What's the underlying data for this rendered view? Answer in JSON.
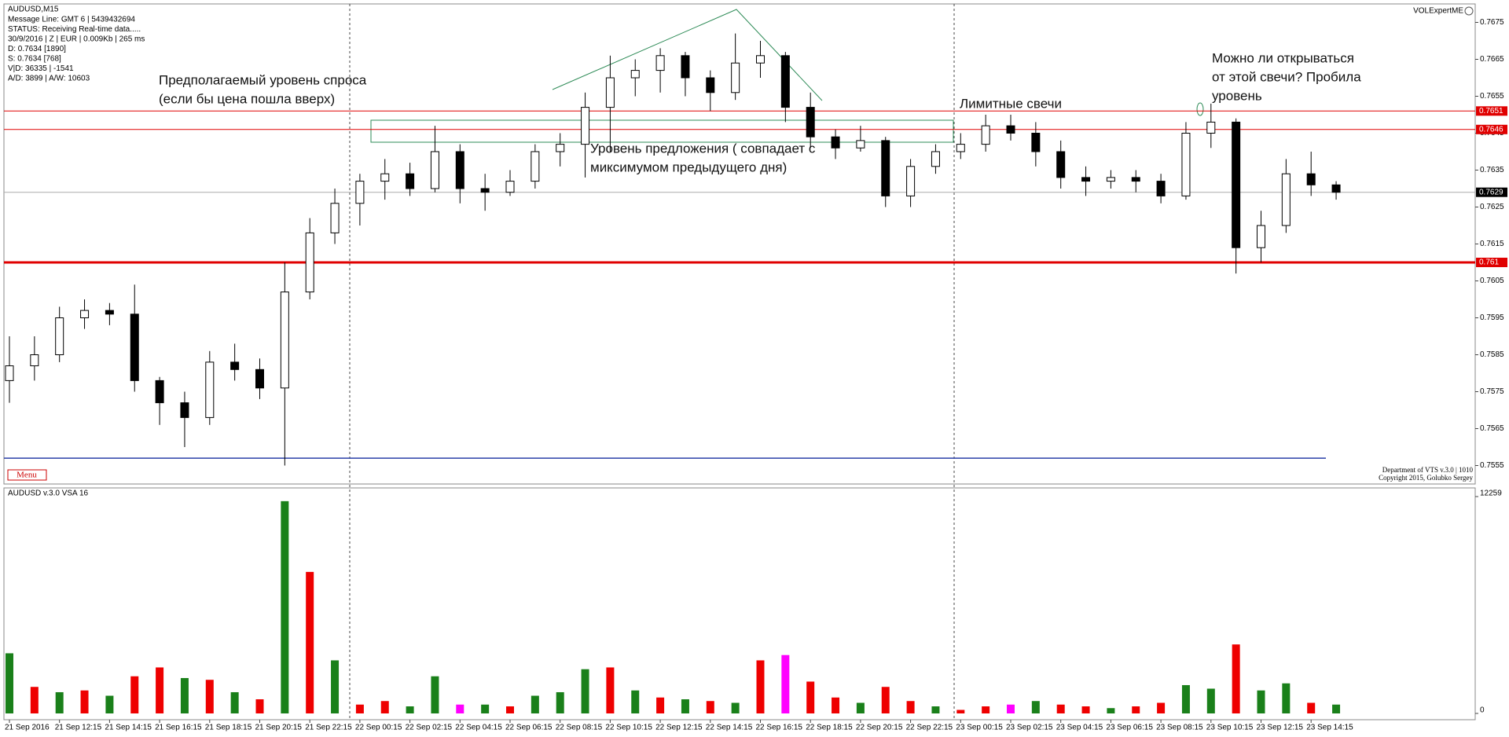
{
  "header": {
    "title": "AUDUSD,M15",
    "info_lines": [
      "Message Line: GMT 6 | 5439432694",
      "STATUS:  Receiving Real-time data.....",
      "30/9/2016 | Z | EUR | 0.009Kb | 265 ms",
      "D: 0.7634  [1890]",
      "S: 0.7634  [768]",
      "V|D: 36335 | -1541",
      "A/D: 3899 | A/W: 10603"
    ],
    "indicator_name": "VOLExpertME",
    "menu": "Menu",
    "credits": [
      "Department of VTS  v.3.0 | 1010",
      "Copyright 2015, Golubko Sergey"
    ]
  },
  "annotations": [
    {
      "lines": [
        "Предполагаемый уровень спроса",
        "(если бы цена пошла вверх)"
      ]
    },
    {
      "lines": [
        "Уровень предложения ( совпадает с",
        "миксимумом предыдущего дня)"
      ]
    },
    {
      "lines": [
        "Лимитные свечи"
      ]
    },
    {
      "lines": [
        "Можно ли открываться",
        "от этой свечи? Пробила",
        "уровень"
      ]
    }
  ],
  "chart_data": [
    {
      "type": "candlestick",
      "open": [
        0.7578,
        0.7582,
        0.7585,
        0.7595,
        0.7597,
        0.7596,
        0.7578,
        0.7572,
        0.7568,
        0.7583,
        0.7581,
        0.7576,
        0.7602,
        0.7618,
        0.7626,
        0.7632,
        0.7634,
        0.763,
        0.764,
        0.763,
        0.7629,
        0.7632,
        0.764,
        0.7642,
        0.7652,
        0.766,
        0.7662,
        0.7666,
        0.766,
        0.7656,
        0.7664,
        0.7666,
        0.7652,
        0.7644,
        0.7641,
        0.7643,
        0.7628,
        0.7636,
        0.764,
        0.7642,
        0.7647,
        0.7645,
        0.764,
        0.7633,
        0.7632,
        0.7633,
        0.7632,
        0.7628,
        0.7645,
        0.7648,
        0.7614,
        0.762,
        0.7634,
        0.7631
      ],
      "high": [
        0.759,
        0.759,
        0.7598,
        0.76,
        0.7599,
        0.7604,
        0.7579,
        0.7575,
        0.7586,
        0.7588,
        0.7584,
        0.761,
        0.7622,
        0.763,
        0.7634,
        0.7638,
        0.7637,
        0.7647,
        0.7642,
        0.7634,
        0.7635,
        0.7642,
        0.7645,
        0.7656,
        0.7666,
        0.7665,
        0.7668,
        0.7667,
        0.7662,
        0.7672,
        0.767,
        0.7667,
        0.7656,
        0.7646,
        0.7647,
        0.7644,
        0.7638,
        0.7642,
        0.7645,
        0.765,
        0.765,
        0.7648,
        0.7643,
        0.7636,
        0.7635,
        0.7635,
        0.7634,
        0.7648,
        0.7653,
        0.7649,
        0.7624,
        0.7638,
        0.764,
        0.7632
      ],
      "low": [
        0.7572,
        0.7578,
        0.7583,
        0.7592,
        0.7593,
        0.7575,
        0.7566,
        0.756,
        0.7566,
        0.7578,
        0.7573,
        0.7555,
        0.76,
        0.7615,
        0.762,
        0.7627,
        0.7628,
        0.7629,
        0.7626,
        0.7624,
        0.7628,
        0.763,
        0.7636,
        0.7633,
        0.764,
        0.7655,
        0.7656,
        0.7655,
        0.7651,
        0.7654,
        0.766,
        0.7648,
        0.7641,
        0.7638,
        0.764,
        0.7625,
        0.7625,
        0.7634,
        0.7638,
        0.764,
        0.7643,
        0.7636,
        0.763,
        0.7628,
        0.763,
        0.7629,
        0.7626,
        0.7627,
        0.7641,
        0.7607,
        0.761,
        0.7618,
        0.7628,
        0.7627
      ],
      "close": [
        0.7582,
        0.7585,
        0.7595,
        0.7597,
        0.7596,
        0.7578,
        0.7572,
        0.7568,
        0.7583,
        0.7581,
        0.7576,
        0.7602,
        0.7618,
        0.7626,
        0.7632,
        0.7634,
        0.763,
        0.764,
        0.763,
        0.7629,
        0.7632,
        0.764,
        0.7642,
        0.7652,
        0.766,
        0.7662,
        0.7666,
        0.766,
        0.7656,
        0.7664,
        0.7666,
        0.7652,
        0.7644,
        0.7641,
        0.7643,
        0.7628,
        0.7636,
        0.764,
        0.7642,
        0.7647,
        0.7645,
        0.764,
        0.7633,
        0.7632,
        0.7633,
        0.7632,
        0.7628,
        0.7645,
        0.7648,
        0.7614,
        0.762,
        0.7634,
        0.7631,
        0.7629
      ],
      "up_color": "#ffffff",
      "down_color": "#000000",
      "ylim": [
        0.755,
        0.768
      ],
      "yticks": [
        0.7555,
        0.7565,
        0.7575,
        0.7585,
        0.7595,
        0.7605,
        0.7615,
        0.7625,
        0.7635,
        0.7645,
        0.7655,
        0.7665,
        0.7675
      ],
      "levels": [
        {
          "value": 0.7651,
          "color": "#e00000",
          "width": 1,
          "tag": true,
          "tag_color": "#e00000"
        },
        {
          "value": 0.7646,
          "color": "#e00000",
          "width": 1,
          "tag": true,
          "tag_color": "#e00000"
        },
        {
          "value": 0.7629,
          "color": "#aaaaaa",
          "width": 1,
          "tag": true,
          "tag_color": "#000000"
        },
        {
          "value": 0.761,
          "color": "#e00000",
          "width": 3,
          "tag": true,
          "tag_color": "#e00000"
        },
        {
          "value": 0.7557,
          "color": "#2a3fa8",
          "width": 1.5,
          "tag": false,
          "tag_color": "#2a3fa8"
        }
      ]
    },
    {
      "type": "bar",
      "title": "AUDUSD v.3.0 VSA 16",
      "categories": [
        "21 Sep 2016",
        null,
        "21 Sep 12:15",
        null,
        "21 Sep 14:15",
        null,
        "21 Sep 16:15",
        null,
        "21 Sep 18:15",
        null,
        "21 Sep 20:15",
        null,
        "21 Sep 22:15",
        null,
        "22 Sep 00:15",
        null,
        "22 Sep 02:15",
        null,
        "22 Sep 04:15",
        null,
        "22 Sep 06:15",
        null,
        "22 Sep 08:15",
        null,
        "22 Sep 10:15",
        null,
        "22 Sep 12:15",
        null,
        "22 Sep 14:15",
        null,
        "22 Sep 16:15",
        null,
        "22 Sep 18:15",
        null,
        "22 Sep 20:15",
        null,
        "22 Sep 22:15",
        null,
        "23 Sep 00:15",
        null,
        "23 Sep 02:15",
        null,
        "23 Sep 04:15",
        null,
        "23 Sep 06:15",
        null,
        "23 Sep 08:15",
        null,
        "23 Sep 10:15",
        null,
        "23 Sep 12:15",
        null,
        "23 Sep 14:15",
        null
      ],
      "values": [
        3400,
        1500,
        1200,
        1300,
        1000,
        2100,
        2600,
        2000,
        1900,
        1200,
        800,
        12000,
        8000,
        3000,
        500,
        700,
        400,
        2100,
        500,
        500,
        400,
        1000,
        1200,
        2500,
        2600,
        1300,
        900,
        800,
        700,
        600,
        3000,
        3300,
        1800,
        900,
        600,
        1500,
        700,
        400,
        200,
        400,
        500,
        700,
        500,
        400,
        300,
        400,
        600,
        1600,
        1400,
        3900,
        1300,
        1700,
        600,
        500
      ],
      "colors": [
        "#1a801a",
        "#ee0000",
        "#1a801a",
        "#ee0000",
        "#1a801a",
        "#ee0000",
        "#ee0000",
        "#1a801a",
        "#ee0000",
        "#1a801a",
        "#ee0000",
        "#1a801a",
        "#ee0000",
        "#1a801a",
        "#ee0000",
        "#ee0000",
        "#1a801a",
        "#1a801a",
        "#ff00ff",
        "#1a801a",
        "#ee0000",
        "#1a801a",
        "#1a801a",
        "#1a801a",
        "#ee0000",
        "#1a801a",
        "#ee0000",
        "#1a801a",
        "#ee0000",
        "#1a801a",
        "#ee0000",
        "#ff00ff",
        "#ee0000",
        "#ee0000",
        "#1a801a",
        "#ee0000",
        "#ee0000",
        "#1a801a",
        "#ee0000",
        "#ee0000",
        "#ff00ff",
        "#1a801a",
        "#ee0000",
        "#ee0000",
        "#1a801a",
        "#ee0000",
        "#ee0000",
        "#1a801a",
        "#1a801a",
        "#ee0000",
        "#1a801a",
        "#1a801a",
        "#ee0000",
        "#1a801a"
      ],
      "ylim": [
        0,
        12259
      ],
      "yticks": [
        0,
        12259
      ]
    }
  ]
}
